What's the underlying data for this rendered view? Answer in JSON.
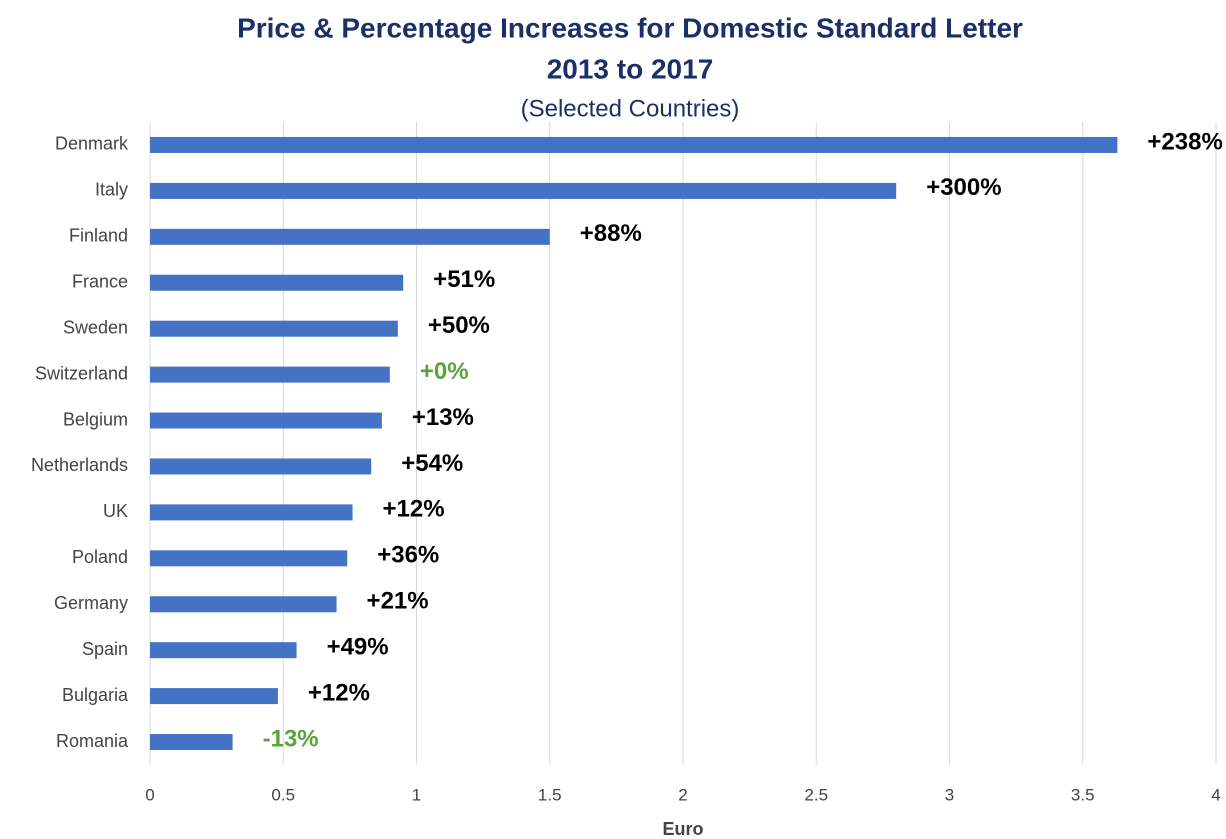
{
  "chart_data": {
    "type": "hbar",
    "title": "Price & Percentage Increases for Domestic Standard Letter",
    "title_line2": "2013 to 2017",
    "subtitle": "(Selected Countries)",
    "x_label": "Euro",
    "categories": [
      "Denmark",
      "Italy",
      "Finland",
      "France",
      "Sweden",
      "Switzerland",
      "Belgium",
      "Netherlands",
      "UK",
      "Poland",
      "Germany",
      "Spain",
      "Bulgaria",
      "Romania"
    ],
    "values": [
      3.63,
      2.8,
      1.5,
      0.95,
      0.93,
      0.9,
      0.87,
      0.83,
      0.76,
      0.74,
      0.7,
      0.55,
      0.48,
      0.31
    ],
    "annotations": [
      "+238%",
      "+300%",
      "+88%",
      "+51%",
      "+50%",
      "+0%",
      "+13%",
      "+54%",
      "+12%",
      "+36%",
      "+21%",
      "+49%",
      "+12%",
      "-13%"
    ],
    "annotation_colors": [
      "#000000",
      "#000000",
      "#000000",
      "#000000",
      "#000000",
      "#5ba33b",
      "#000000",
      "#000000",
      "#000000",
      "#000000",
      "#000000",
      "#000000",
      "#000000",
      "#5ba33b"
    ],
    "color": "#4472c4",
    "xlim": [
      0,
      4
    ],
    "xticks": [
      0,
      0.5,
      1,
      1.5,
      2,
      2.5,
      3,
      3.5,
      4
    ],
    "grid": true
  }
}
